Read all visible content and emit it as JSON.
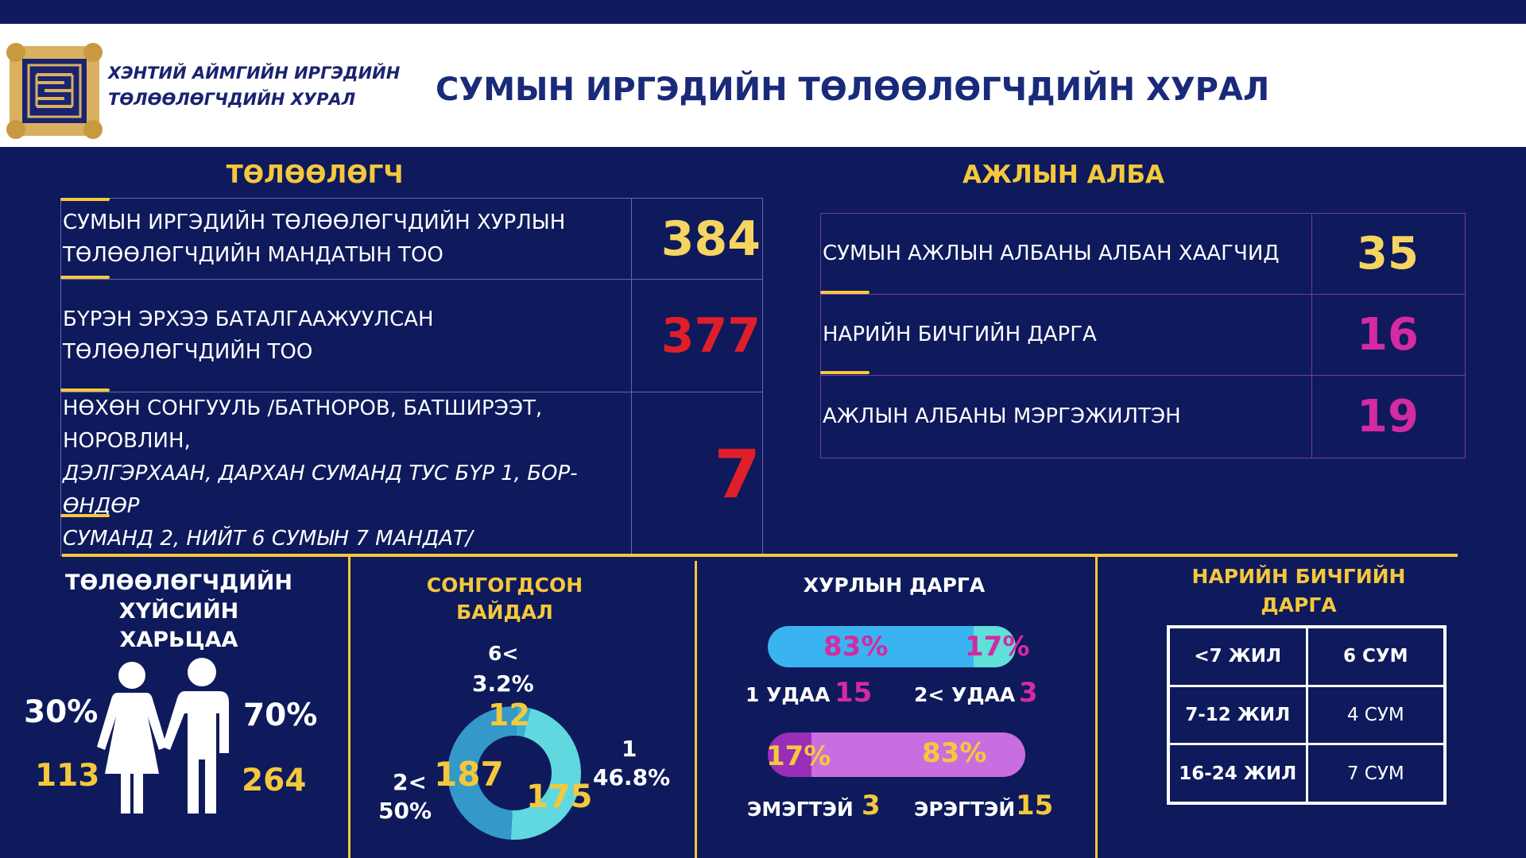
{
  "header": {
    "org_line1": "ХЭНТИЙ АЙМГИЙН ИРГЭДИЙН",
    "org_line2": "ТӨЛӨӨЛӨГЧДИЙН ХУРАЛ",
    "title": "СУМЫН ИРГЭДИЙН ТӨЛӨӨЛӨГЧДИЙН ХУРАЛ"
  },
  "representatives": {
    "title": "ТӨЛӨӨЛӨГЧ",
    "rows": [
      {
        "label_line1": "СУМЫН ИРГЭДИЙН ТӨЛӨӨЛӨГЧДИЙН ХУРЛЫН",
        "label_line2": "ТӨЛӨӨЛӨГЧДИЙН МАНДАТЫН ТОО",
        "value": "384"
      },
      {
        "label_line1": "БҮРЭН ЭРХЭЭ БАТАЛГААЖУУЛСАН ТӨЛӨӨЛӨГЧДИЙН ТОО",
        "value": "377"
      },
      {
        "label_line1": "НӨХӨН СОНГУУЛЬ /БАТНОРОВ, БАТШИРЭЭТ, НОРОВЛИН,",
        "label_line2": "ДЭЛГЭРХААН, ДАРХАН СУМАНД ТУС БҮР 1, БОР-ӨНДӨР",
        "label_line3": "СУМАНД 2, НИЙТ 6 СУМЫН 7 МАНДАТ/",
        "value": "7"
      }
    ]
  },
  "office": {
    "title": "АЖЛЫН АЛБА",
    "rows": [
      {
        "label": "СУМЫН АЖЛЫН АЛБАНЫ АЛБАН ХААГЧИД",
        "value": "35"
      },
      {
        "label": "НАРИЙН БИЧГИЙН ДАРГА",
        "value": "16"
      },
      {
        "label": "АЖЛЫН АЛБАНЫ МЭРГЭЖИЛТЭН",
        "value": "19"
      }
    ]
  },
  "gender": {
    "title_line1": "ТӨЛӨӨЛӨГЧДИЙН ХҮЙСИЙН",
    "title_line2": "ХАРЬЦАА",
    "female_pct": "30%",
    "female_count": "113",
    "male_pct": "70%",
    "male_count": "264",
    "icon": "couple-icon"
  },
  "elected": {
    "title_line1": "СОНГОГДСОН",
    "title_line2": "БАЙДАЛ",
    "chart_data": {
      "type": "pie",
      "categories": [
        "6<",
        "1",
        "2<"
      ],
      "values": [
        12,
        175,
        187
      ],
      "percent_labels": [
        "3.2%",
        "46.8%",
        "50%"
      ],
      "colors": [
        "#3ab0d4",
        "#5fd8e0",
        "#3498c8"
      ]
    }
  },
  "chair": {
    "title": "ХУРЛЫН ДАРГА",
    "bar1": {
      "left_pct": "83%",
      "right_pct": "17%",
      "left_fraction": 0.83,
      "left_color": "#3ab4f0",
      "right_color": "#5fe0d8"
    },
    "term1_label": "1 УДАА",
    "term1_value": "15",
    "term2_label": "2< УДАА",
    "term2_value": "3",
    "bar2": {
      "left_pct": "17%",
      "right_pct": "83%",
      "left_fraction": 0.17,
      "left_color": "#9a2eb8",
      "right_color": "#c86ee0"
    },
    "female_label": "ЭМЭГТЭЙ",
    "female_value": "3",
    "male_label": "ЭРЭГТЭЙ",
    "male_value": "15"
  },
  "secretary": {
    "title_line1": "НАРИЙН БИЧГИЙН",
    "title_line2": "ДАРГА",
    "rows": [
      {
        "range": "<7 ЖИЛ",
        "count": "6 СУМ"
      },
      {
        "range": "7-12 ЖИЛ",
        "count": "4 СУМ"
      },
      {
        "range": "16-24 ЖИЛ",
        "count": "7 СУМ"
      }
    ]
  },
  "colors": {
    "background": "#0e1a5c",
    "accent_yellow": "#f5c83c",
    "red": "#e01e2a",
    "magenta": "#d42aa2"
  }
}
